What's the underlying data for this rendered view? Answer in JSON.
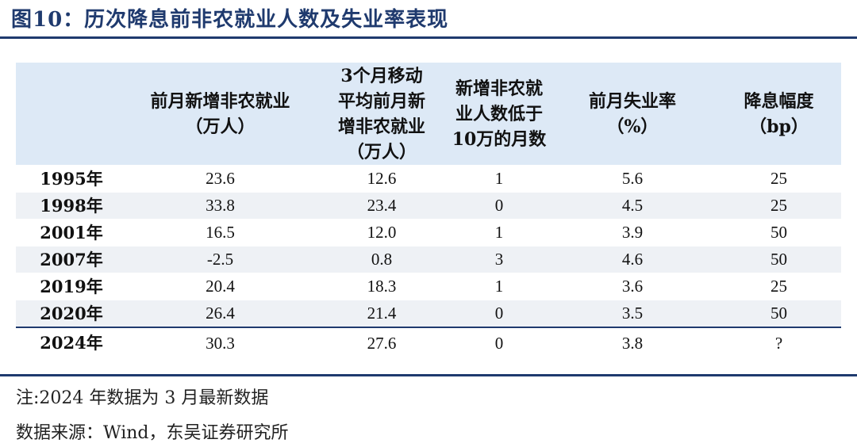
{
  "title": "图10：历次降息前非农就业人数及失业率表现",
  "table": {
    "headers": [
      "",
      "前月新增非农就业\n（万人）",
      "3个月移动\n平均前月新\n增非农就业\n（万人）",
      "新增非农就\n业人数低于\n10万的月数",
      "前月失业率\n（%）",
      "降息幅度\n（bp）"
    ],
    "rows": [
      [
        "1995年",
        "23.6",
        "12.6",
        "1",
        "5.6",
        "25"
      ],
      [
        "1998年",
        "33.8",
        "23.4",
        "0",
        "4.5",
        "25"
      ],
      [
        "2001年",
        "16.5",
        "12.0",
        "1",
        "3.9",
        "50"
      ],
      [
        "2007年",
        "-2.5",
        "0.8",
        "3",
        "4.6",
        "50"
      ],
      [
        "2019年",
        "20.4",
        "18.3",
        "1",
        "3.6",
        "25"
      ],
      [
        "2020年",
        "26.4",
        "21.4",
        "0",
        "3.5",
        "50"
      ],
      [
        "2024年",
        "30.3",
        "27.6",
        "0",
        "3.8",
        "?"
      ]
    ]
  },
  "note": "注:2024 年数据为 3 月最新数据",
  "source": "数据来源：Wind，东吴证券研究所"
}
